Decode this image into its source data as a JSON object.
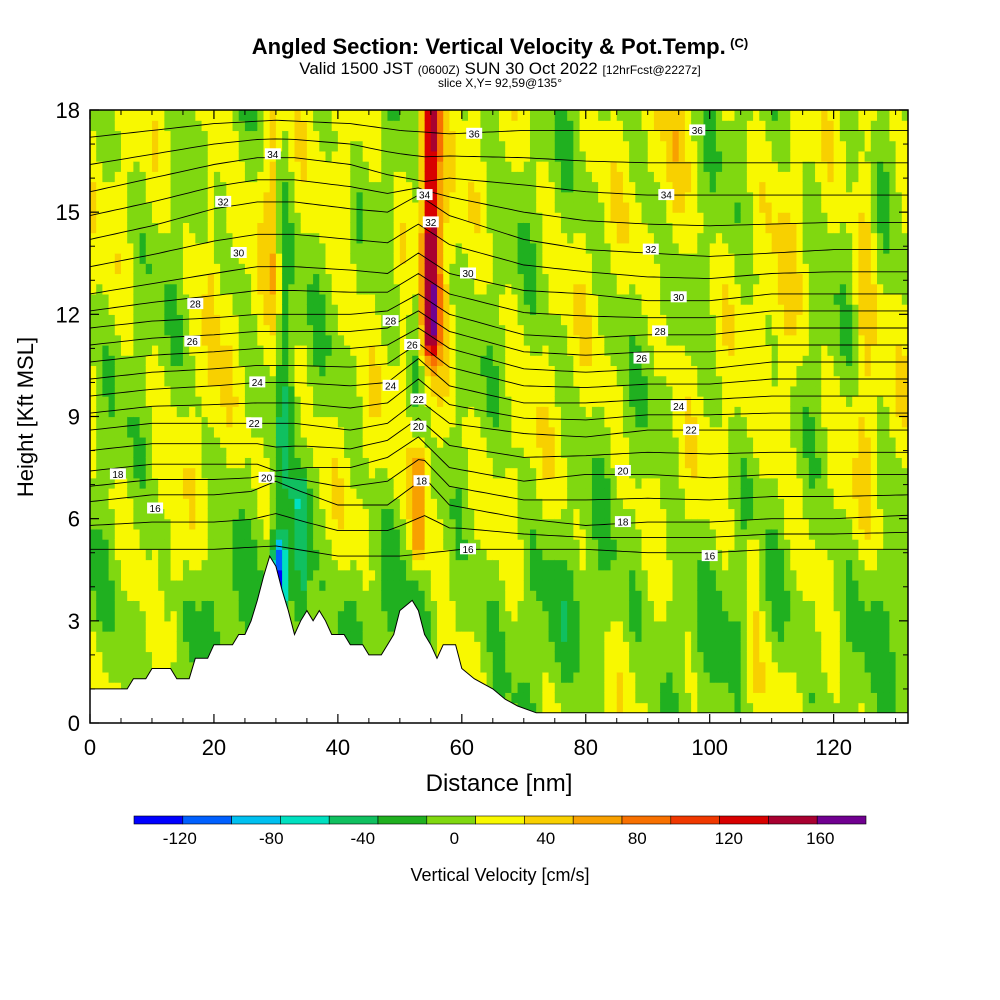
{
  "header": {
    "title": "Angled Section: Vertical Velocity & Pot.Temp.",
    "title_note": "(C)",
    "valid_prefix": "Valid 1500 JST",
    "valid_utc": "(0600Z)",
    "valid_date": "SUN 30 Oct 2022",
    "forecast_note": "[12hrFcst@2227z]",
    "slice": "slice X,Y= 92,59@135°"
  },
  "chart_data": {
    "type": "heatmap",
    "xlabel": "Distance [nm]",
    "ylabel": "Height [Kft MSL]",
    "xlim": [
      0,
      132
    ],
    "ylim": [
      0,
      18
    ],
    "x_ticks": [
      0,
      20,
      40,
      60,
      80,
      100,
      120
    ],
    "y_ticks": [
      0,
      3,
      6,
      9,
      12,
      15,
      18
    ],
    "colorbar": {
      "label": "Vertical Velocity [cm/s]",
      "range": [
        -140,
        180
      ],
      "tick_values": [
        -120,
        -80,
        -40,
        0,
        40,
        80,
        120,
        160
      ],
      "tick_labels": [
        "-120",
        "-80",
        "-40",
        "0",
        "40",
        "80",
        "120",
        "160"
      ],
      "colors": [
        "#0000ff",
        "#0060ff",
        "#00c0f0",
        "#00e0c0",
        "#10c060",
        "#20b020",
        "#80d810",
        "#f8f800",
        "#f8d000",
        "#f8a000",
        "#f87000",
        "#f03800",
        "#d80000",
        "#a80030",
        "#700090"
      ]
    },
    "terrain_profile_kft": [
      [
        0,
        1.0
      ],
      [
        2,
        1.0
      ],
      [
        6,
        1.0
      ],
      [
        7,
        1.3
      ],
      [
        9,
        1.3
      ],
      [
        10,
        1.6
      ],
      [
        13,
        1.6
      ],
      [
        14,
        1.3
      ],
      [
        16,
        1.3
      ],
      [
        17,
        1.9
      ],
      [
        19,
        1.9
      ],
      [
        20,
        2.3
      ],
      [
        23,
        2.3
      ],
      [
        24,
        2.6
      ],
      [
        25,
        2.6
      ],
      [
        26,
        3.0
      ],
      [
        27,
        3.6
      ],
      [
        28,
        4.3
      ],
      [
        29,
        4.9
      ],
      [
        30,
        4.6
      ],
      [
        31,
        3.9
      ],
      [
        32,
        3.3
      ],
      [
        33,
        2.6
      ],
      [
        34,
        3.0
      ],
      [
        35,
        3.3
      ],
      [
        36,
        3.0
      ],
      [
        37,
        3.3
      ],
      [
        38,
        3.0
      ],
      [
        39,
        2.6
      ],
      [
        41,
        2.6
      ],
      [
        42,
        2.3
      ],
      [
        44,
        2.3
      ],
      [
        45,
        2.0
      ],
      [
        47,
        2.0
      ],
      [
        48,
        2.3
      ],
      [
        49,
        2.6
      ],
      [
        50,
        3.3
      ],
      [
        52,
        3.6
      ],
      [
        53,
        3.3
      ],
      [
        54,
        2.6
      ],
      [
        55,
        2.3
      ],
      [
        56,
        1.9
      ],
      [
        57,
        2.3
      ],
      [
        59,
        2.3
      ],
      [
        60,
        1.6
      ],
      [
        62,
        1.3
      ],
      [
        65,
        1.0
      ],
      [
        67,
        0.7
      ],
      [
        69,
        0.5
      ],
      [
        72,
        0.3
      ],
      [
        80,
        0.3
      ],
      [
        100,
        0.3
      ],
      [
        132,
        0.3
      ]
    ],
    "theta_contours": [
      {
        "label": "16",
        "heights_kft": [
          [
            0,
            5.1
          ],
          [
            10,
            5.1
          ],
          [
            20,
            5.1
          ],
          [
            30,
            5.2
          ],
          [
            40,
            4.9
          ],
          [
            50,
            4.9
          ],
          [
            60,
            5.1
          ],
          [
            70,
            5.1
          ],
          [
            80,
            5.1
          ],
          [
            90,
            5.0
          ],
          [
            100,
            5.0
          ],
          [
            110,
            5.1
          ],
          [
            120,
            5.1
          ],
          [
            132,
            5.1
          ]
        ],
        "label_at": [
          [
            10.5,
            6.3
          ],
          [
            61,
            5.1
          ],
          [
            100,
            4.9
          ]
        ]
      },
      {
        "label": "18",
        "heights_kft": [
          [
            0,
            6.5
          ],
          [
            10,
            6.7
          ],
          [
            20,
            6.7
          ],
          [
            26,
            6.8
          ],
          [
            30,
            7.1
          ],
          [
            34,
            6.8
          ],
          [
            40,
            6.4
          ],
          [
            48,
            6.4
          ],
          [
            54,
            7.2
          ],
          [
            58,
            6.4
          ],
          [
            70,
            6.0
          ],
          [
            80,
            5.8
          ],
          [
            90,
            5.9
          ],
          [
            100,
            5.9
          ],
          [
            110,
            6.0
          ],
          [
            120,
            6.0
          ],
          [
            132,
            6.1
          ]
        ],
        "label_at": [
          [
            4.5,
            7.3
          ],
          [
            53.5,
            7.1
          ],
          [
            86,
            5.9
          ]
        ]
      },
      {
        "label": "20",
        "heights_kft": [
          [
            0,
            7.4
          ],
          [
            10,
            7.6
          ],
          [
            20,
            7.6
          ],
          [
            27,
            7.6
          ],
          [
            30,
            7.4
          ],
          [
            35,
            7.5
          ],
          [
            42,
            7.5
          ],
          [
            48,
            7.8
          ],
          [
            53,
            8.4
          ],
          [
            58,
            7.5
          ],
          [
            70,
            7.1
          ],
          [
            80,
            7.3
          ],
          [
            90,
            7.3
          ],
          [
            100,
            7.2
          ],
          [
            110,
            7.3
          ],
          [
            120,
            7.3
          ],
          [
            132,
            7.3
          ]
        ],
        "label_at": [
          [
            28.5,
            7.2
          ],
          [
            53,
            8.7
          ],
          [
            86,
            7.4
          ]
        ]
      },
      {
        "label": "22",
        "heights_kft": [
          [
            0,
            8.6
          ],
          [
            10,
            8.8
          ],
          [
            20,
            8.8
          ],
          [
            27,
            8.8
          ],
          [
            33,
            8.8
          ],
          [
            42,
            8.6
          ],
          [
            48,
            8.8
          ],
          [
            53,
            9.5
          ],
          [
            58,
            8.8
          ],
          [
            70,
            8.5
          ],
          [
            80,
            8.4
          ],
          [
            90,
            8.6
          ],
          [
            100,
            8.6
          ],
          [
            110,
            8.6
          ],
          [
            120,
            8.6
          ],
          [
            132,
            8.6
          ]
        ],
        "label_at": [
          [
            26.5,
            8.8
          ],
          [
            53,
            9.5
          ],
          [
            97,
            8.6
          ]
        ]
      },
      {
        "label": "24",
        "heights_kft": [
          [
            0,
            9.6
          ],
          [
            10,
            9.8
          ],
          [
            20,
            9.9
          ],
          [
            27,
            10.0
          ],
          [
            33,
            10.0
          ],
          [
            42,
            9.9
          ],
          [
            48,
            10.0
          ],
          [
            53,
            10.7
          ],
          [
            58,
            9.9
          ],
          [
            70,
            9.4
          ],
          [
            80,
            9.4
          ],
          [
            90,
            9.5
          ],
          [
            100,
            9.5
          ],
          [
            110,
            9.6
          ],
          [
            120,
            9.6
          ],
          [
            132,
            9.6
          ]
        ],
        "label_at": [
          [
            27,
            10.0
          ],
          [
            48.5,
            9.9
          ],
          [
            95,
            9.3
          ]
        ]
      },
      {
        "label": "26",
        "heights_kft": [
          [
            0,
            10.6
          ],
          [
            10,
            10.8
          ],
          [
            20,
            10.9
          ],
          [
            27,
            11.0
          ],
          [
            33,
            11.0
          ],
          [
            42,
            11.0
          ],
          [
            48,
            11.1
          ],
          [
            53,
            11.6
          ],
          [
            58,
            11.0
          ],
          [
            70,
            10.4
          ],
          [
            80,
            10.3
          ],
          [
            90,
            10.4
          ],
          [
            100,
            10.4
          ],
          [
            110,
            10.6
          ],
          [
            120,
            10.6
          ],
          [
            132,
            10.6
          ]
        ],
        "label_at": [
          [
            16.5,
            11.2
          ],
          [
            52,
            11.1
          ],
          [
            89,
            10.7
          ]
        ]
      },
      {
        "label": "28",
        "heights_kft": [
          [
            0,
            11.6
          ],
          [
            10,
            11.8
          ],
          [
            20,
            11.9
          ],
          [
            27,
            12.0
          ],
          [
            33,
            12.0
          ],
          [
            42,
            12.0
          ],
          [
            48,
            12.1
          ],
          [
            53,
            12.6
          ],
          [
            58,
            12.0
          ],
          [
            70,
            11.4
          ],
          [
            80,
            11.3
          ],
          [
            90,
            11.4
          ],
          [
            100,
            11.4
          ],
          [
            110,
            11.6
          ],
          [
            120,
            11.6
          ],
          [
            132,
            11.6
          ]
        ],
        "label_at": [
          [
            17,
            12.3
          ],
          [
            48.5,
            11.8
          ],
          [
            92,
            11.5
          ]
        ]
      },
      {
        "label": "30",
        "heights_kft": [
          [
            0,
            12.6
          ],
          [
            10,
            12.9
          ],
          [
            20,
            13.2
          ],
          [
            27,
            13.4
          ],
          [
            33,
            13.4
          ],
          [
            42,
            13.3
          ],
          [
            48,
            13.2
          ],
          [
            53,
            13.8
          ],
          [
            58,
            13.2
          ],
          [
            70,
            12.7
          ],
          [
            80,
            12.6
          ],
          [
            90,
            12.4
          ],
          [
            100,
            12.4
          ],
          [
            110,
            12.6
          ],
          [
            120,
            12.6
          ],
          [
            132,
            12.6
          ]
        ],
        "label_at": [
          [
            24,
            13.8
          ],
          [
            61,
            13.2
          ],
          [
            95,
            12.5
          ]
        ]
      },
      {
        "label": "32",
        "heights_kft": [
          [
            0,
            14.2
          ],
          [
            10,
            14.6
          ],
          [
            20,
            15.1
          ],
          [
            27,
            15.3
          ],
          [
            33,
            15.3
          ],
          [
            42,
            15.1
          ],
          [
            48,
            15.0
          ],
          [
            53,
            15.5
          ],
          [
            58,
            14.9
          ],
          [
            70,
            14.2
          ],
          [
            80,
            13.9
          ],
          [
            90,
            13.8
          ],
          [
            100,
            13.7
          ],
          [
            110,
            13.8
          ],
          [
            120,
            13.9
          ],
          [
            132,
            13.9
          ]
        ],
        "label_at": [
          [
            21.5,
            15.3
          ],
          [
            55,
            14.7
          ],
          [
            90.5,
            13.9
          ]
        ]
      },
      {
        "label": "34",
        "heights_kft": [
          [
            0,
            15.6
          ],
          [
            10,
            16.0
          ],
          [
            20,
            16.4
          ],
          [
            27,
            16.6
          ],
          [
            33,
            16.6
          ],
          [
            42,
            16.4
          ],
          [
            48,
            16.1
          ],
          [
            54,
            15.9
          ],
          [
            58,
            16.0
          ],
          [
            70,
            15.8
          ],
          [
            80,
            15.6
          ],
          [
            90,
            15.5
          ],
          [
            100,
            15.5
          ],
          [
            110,
            15.5
          ],
          [
            120,
            15.5
          ],
          [
            132,
            15.5
          ]
        ],
        "label_at": [
          [
            29.5,
            16.7
          ],
          [
            54,
            15.5
          ],
          [
            93,
            15.5
          ]
        ]
      },
      {
        "label": "36",
        "heights_kft": [
          [
            0,
            17.2
          ],
          [
            10,
            17.4
          ],
          [
            20,
            17.6
          ],
          [
            30,
            17.7
          ],
          [
            42,
            17.6
          ],
          [
            50,
            17.4
          ],
          [
            58,
            17.3
          ],
          [
            70,
            17.4
          ],
          [
            80,
            17.4
          ],
          [
            90,
            17.4
          ],
          [
            100,
            17.4
          ],
          [
            110,
            17.4
          ],
          [
            120,
            17.4
          ],
          [
            132,
            17.4
          ]
        ],
        "label_at": [
          [
            62,
            17.3
          ],
          [
            98,
            17.4
          ]
        ]
      }
    ],
    "velocity_features": [
      {
        "x_nm": 55,
        "value_cms": 130,
        "from_kft": 11.5,
        "to_kft": 18
      },
      {
        "x_nm": 53,
        "value_cms": 70,
        "from_kft": 5.5,
        "to_kft": 7.5
      },
      {
        "x_nm": 30.5,
        "value_cms": -110,
        "from_kft": 3.9,
        "to_kft": 4.7
      },
      {
        "x_nm": 34,
        "value_cms": -50,
        "from_kft": 3.5,
        "to_kft": 6.5
      },
      {
        "x_nm": 107,
        "value_cms": 40,
        "from_kft": 1.5,
        "to_kft": 5.0
      },
      {
        "x_nm": 14,
        "value_cms": 40,
        "from_kft": 2.5,
        "to_kft": 5.0
      }
    ]
  }
}
